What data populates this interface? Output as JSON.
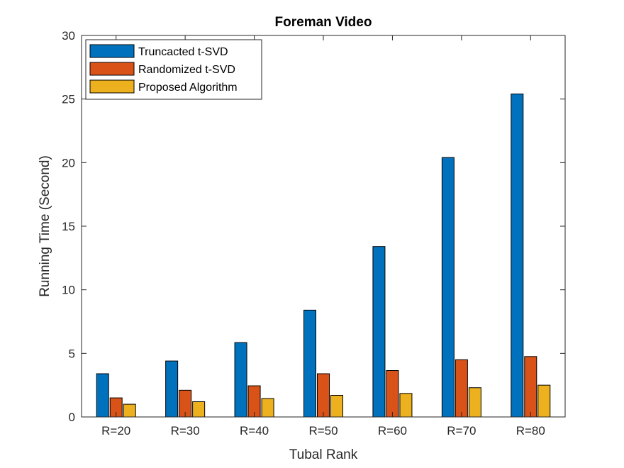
{
  "chart_data": {
    "type": "bar",
    "title": "Foreman Video",
    "xlabel": "Tubal Rank",
    "ylabel": "Running Time (Second)",
    "categories": [
      "R=20",
      "R=30",
      "R=40",
      "R=50",
      "R=60",
      "R=70",
      "R=80"
    ],
    "ylim": [
      0,
      30
    ],
    "yticks": [
      "0",
      "5",
      "10",
      "15",
      "20",
      "25",
      "30"
    ],
    "series": [
      {
        "name": "Truncacted t-SVD",
        "color": "#0072BD",
        "values": [
          3.4,
          4.4,
          5.85,
          8.4,
          13.4,
          20.4,
          25.4
        ]
      },
      {
        "name": "Randomized t-SVD",
        "color": "#D95319",
        "values": [
          1.5,
          2.1,
          2.45,
          3.4,
          3.65,
          4.5,
          4.75
        ]
      },
      {
        "name": "Proposed Algorithm",
        "color": "#EDB120",
        "values": [
          1.0,
          1.2,
          1.45,
          1.7,
          1.85,
          2.3,
          2.5
        ]
      }
    ],
    "legend_position": "top-left",
    "grid": false
  }
}
